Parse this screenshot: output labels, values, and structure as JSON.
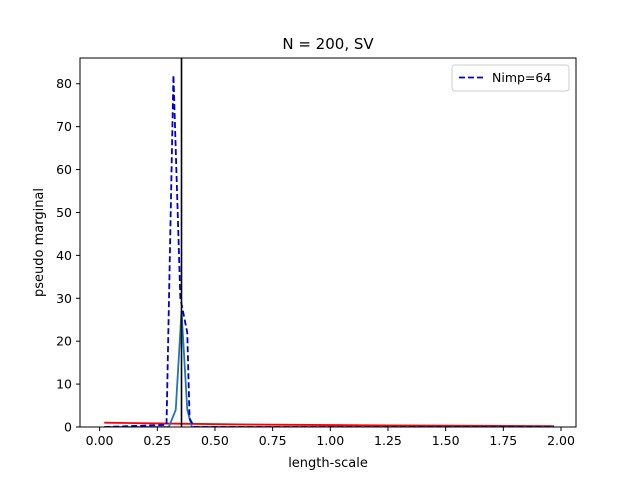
{
  "chart_data": {
    "type": "line",
    "title": "N = 200, SV",
    "xlabel": "length-scale",
    "ylabel": "pseudo marginal",
    "xlim": [
      -0.085,
      2.065
    ],
    "ylim": [
      0,
      86
    ],
    "xticks": [
      "0.00",
      "0.25",
      "0.50",
      "0.75",
      "1.00",
      "1.25",
      "1.50",
      "1.75",
      "2.00"
    ],
    "xtick_values": [
      0,
      0.25,
      0.5,
      0.75,
      1.0,
      1.25,
      1.5,
      1.75,
      2.0
    ],
    "yticks": [
      "0",
      "10",
      "20",
      "30",
      "40",
      "50",
      "60",
      "70",
      "80"
    ],
    "ytick_values": [
      0,
      10,
      20,
      30,
      40,
      50,
      60,
      70,
      80
    ],
    "grid": false,
    "legend_position": "top-right",
    "series": [
      {
        "name": "Nimp=64",
        "color": "#0000cc",
        "style": "dashed",
        "x": [
          0.02,
          0.29,
          0.32,
          0.35,
          0.38,
          0.39,
          0.41,
          1.97
        ],
        "y": [
          0,
          0.5,
          82,
          30,
          22,
          2,
          0,
          0
        ]
      },
      {
        "color": "#1f77b4",
        "style": "solid",
        "x": [
          0.02,
          0.3,
          0.33,
          0.355,
          0.38,
          0.4,
          1.97
        ],
        "y": [
          0,
          0,
          4,
          27,
          4,
          0,
          0
        ]
      },
      {
        "color": "#ff0000",
        "style": "solid",
        "x": [
          0.02,
          0.3,
          0.6,
          1.0,
          1.5,
          1.97
        ],
        "y": [
          1.0,
          0.8,
          0.6,
          0.45,
          0.3,
          0.2
        ]
      }
    ],
    "vline": {
      "x": 0.355,
      "color": "#000000"
    }
  }
}
